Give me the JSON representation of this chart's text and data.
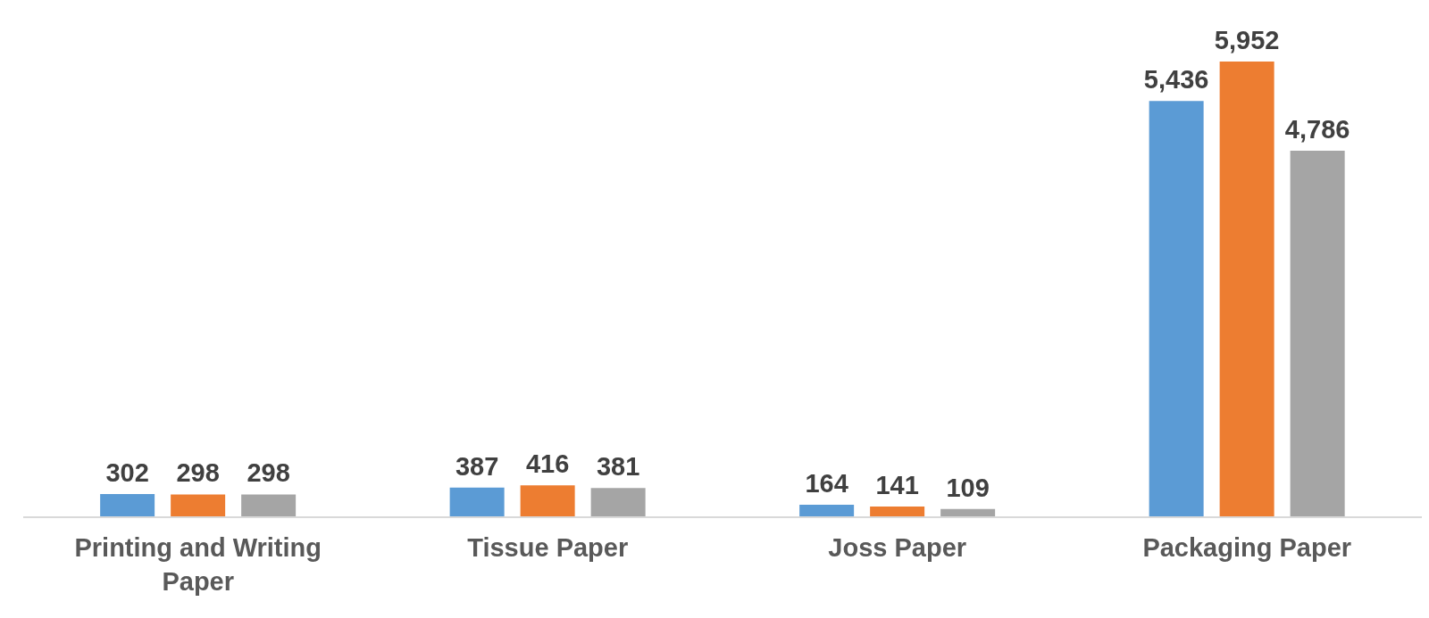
{
  "chart_data": {
    "type": "bar",
    "categories": [
      "Printing and Writing Paper",
      "Tissue Paper",
      "Joss Paper",
      "Packaging Paper"
    ],
    "series": [
      {
        "color": "#5b9bd5",
        "values": [
          302,
          387,
          164,
          5436
        ],
        "value_labels": [
          "302",
          "387",
          "164",
          "5,436"
        ]
      },
      {
        "color": "#ed7d31",
        "values": [
          298,
          416,
          141,
          5952
        ],
        "value_labels": [
          "298",
          "416",
          "141",
          "5,952"
        ]
      },
      {
        "color": "#a5a5a5",
        "values": [
          298,
          381,
          109,
          4786
        ],
        "value_labels": [
          "298",
          "381",
          "109",
          "4,786"
        ]
      }
    ]
  }
}
